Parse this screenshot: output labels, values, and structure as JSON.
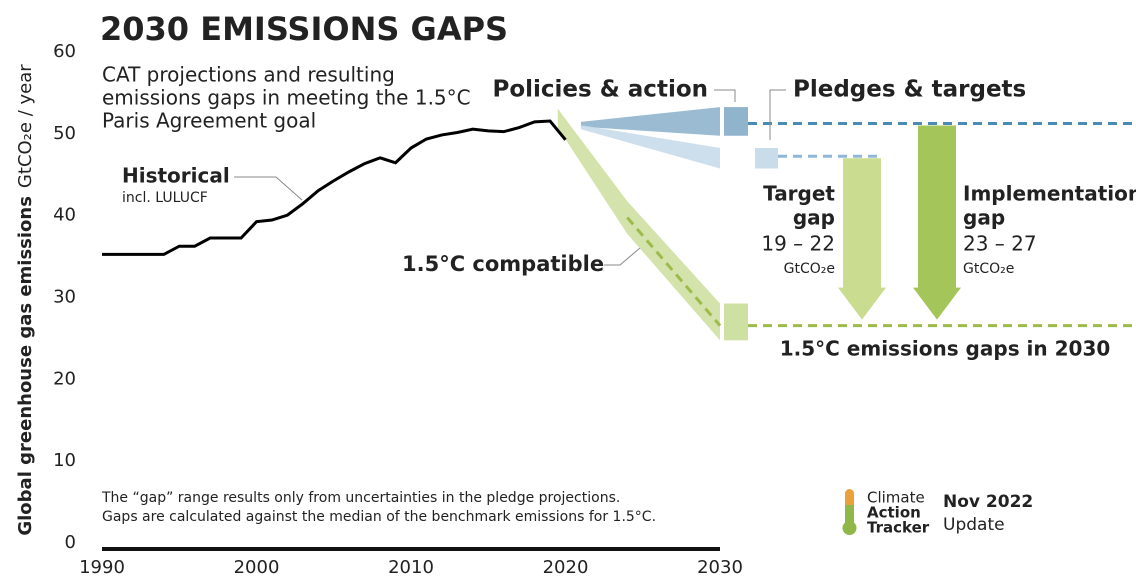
{
  "chart_data": {
    "type": "line",
    "title": "2030 EMISSIONS GAPS",
    "subtitle": [
      "CAT projections and resulting",
      "emissions gaps in meeting the 1.5°C",
      "Paris Agreement goal"
    ],
    "ylabel": "Global greenhouse gas emissions",
    "ylabel_unit": "GtCO₂e / year",
    "xlim": [
      1990,
      2030
    ],
    "ylim": [
      0,
      60
    ],
    "xticks": [
      1990,
      2000,
      2010,
      2020,
      2030
    ],
    "yticks": [
      0,
      10,
      20,
      30,
      40,
      50,
      60
    ],
    "x": [
      1990,
      1991,
      1992,
      1993,
      1994,
      1995,
      1996,
      1997,
      1998,
      1999,
      2000,
      2001,
      2002,
      2003,
      2004,
      2005,
      2006,
      2007,
      2008,
      2009,
      2010,
      2011,
      2012,
      2013,
      2014,
      2015,
      2016,
      2017,
      2018,
      2019,
      2020
    ],
    "series": [
      {
        "name": "Historical",
        "note": "incl. LULUCF",
        "color": "#000000",
        "values": [
          36,
          36,
          36,
          36,
          36,
          37,
          37,
          38,
          38,
          38,
          40,
          40.2,
          40.8,
          42.2,
          43.8,
          45,
          46.1,
          47.1,
          47.8,
          47.2,
          49,
          50.1,
          50.6,
          50.9,
          51.3,
          51.1,
          51,
          51.5,
          52.2,
          52.3,
          50
        ]
      }
    ],
    "bands": [
      {
        "name": "Policies & action",
        "color": "#8fb4cc",
        "line_color": "#4a8ab4",
        "label_color": "#4a8ab4",
        "x": [
          2021,
          2030
        ],
        "lower": [
          51.6,
          50.5
        ],
        "upper": [
          52.2,
          54
        ],
        "median": [
          52,
          52
        ]
      },
      {
        "name": "Pledges & targets",
        "color": "#c8dcea",
        "line_color": "#8fb8d8",
        "label_color": "#8ec3e6",
        "x": [
          2021,
          2030
        ],
        "lower": [
          51.3,
          46.5
        ],
        "upper": [
          51.8,
          49
        ],
        "median": [
          51.6,
          48
        ]
      },
      {
        "name": "1.5°C compatible",
        "color": "#cfe0a3",
        "line_color": "#9dbb4a",
        "label_color": "#a8c75a",
        "x": [
          2019.5,
          2024,
          2030
        ],
        "lower": [
          51.5,
          38.5,
          25.5
        ],
        "upper": [
          53.8,
          42.5,
          30
        ],
        "median": [
          52.6,
          40.5,
          27.3
        ]
      }
    ],
    "gaps": [
      {
        "name": [
          "Target",
          "gap"
        ],
        "range": "19 – 22",
        "unit": "GtCO₂e",
        "color": "#c9dc8f",
        "from": 48,
        "to": 27.3
      },
      {
        "name": [
          "Implementation",
          "gap"
        ],
        "range": "23 – 27",
        "unit": "GtCO₂e",
        "color": "#a4c55a",
        "from": 52,
        "to": 27.3
      }
    ],
    "gap_caption": "1.5°C emissions gaps in 2030",
    "footnote": [
      "The “gap” range results only from uncertainties in the pledge projections.",
      "Gaps are calculated against the median of the benchmark emissions for 1.5°C."
    ],
    "logo": [
      "Climate",
      "Action",
      "Tracker"
    ],
    "date": "Nov 2022",
    "update": "Update"
  }
}
